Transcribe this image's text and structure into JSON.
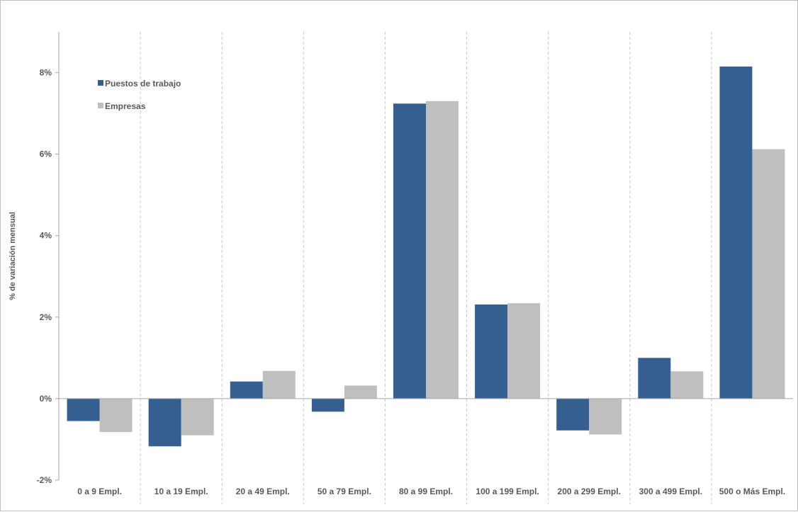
{
  "chart_data": {
    "type": "bar",
    "ylabel": "% de variación mensual",
    "ylim": [
      -2,
      9
    ],
    "yticks": [
      -2,
      0,
      2,
      4,
      6,
      8
    ],
    "ytick_labels": [
      "-2%",
      "0%",
      "2%",
      "4%",
      "6%",
      "8%"
    ],
    "categories": [
      "0 a 9 Empl.",
      "10 a 19 Empl.",
      "20 a 49 Empl.",
      "50 a 79 Empl.",
      "80 a 99 Empl.",
      "100 a 199 Empl.",
      "200 a 299 Empl.",
      "300 a 499 Empl.",
      "500 o Más Empl."
    ],
    "series": [
      {
        "name": "Puestos de trabajo",
        "color": "#355f91",
        "values": [
          -0.55,
          -1.17,
          0.42,
          -0.32,
          7.24,
          2.31,
          -0.78,
          1.0,
          8.15
        ]
      },
      {
        "name": "Empresas",
        "color": "#bfbfbf",
        "values": [
          -0.82,
          -0.9,
          0.68,
          0.32,
          7.3,
          2.34,
          -0.88,
          0.67,
          6.12
        ]
      }
    ],
    "legend": {
      "placement": "top-left",
      "entries": [
        "Puestos de trabajo",
        "Empresas"
      ]
    },
    "grid": {
      "vertical_dashed_separators": true,
      "horizontal": false
    }
  }
}
